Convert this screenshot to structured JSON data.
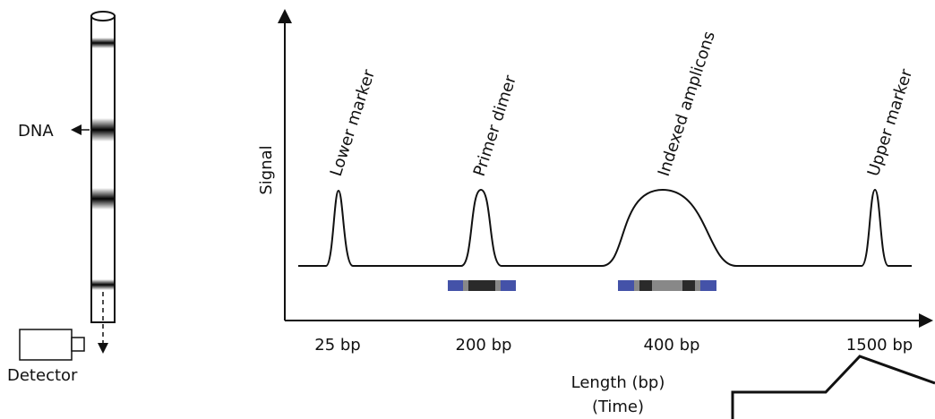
{
  "capillary": {
    "dna_label": "DNA",
    "detector_label": "Detector"
  },
  "plot": {
    "y_axis_label": "Signal",
    "peaks": [
      {
        "label": "Lower marker",
        "size_label": "25 bp"
      },
      {
        "label": "Primer dimer",
        "size_label": "200 bp"
      },
      {
        "label": "Indexed amplicons",
        "size_label": "400 bp"
      },
      {
        "label": "Upper marker",
        "size_label": "1500 bp"
      }
    ],
    "x_axis_label": "Length (bp)",
    "x_axis_sublabel": "(Time)"
  }
}
